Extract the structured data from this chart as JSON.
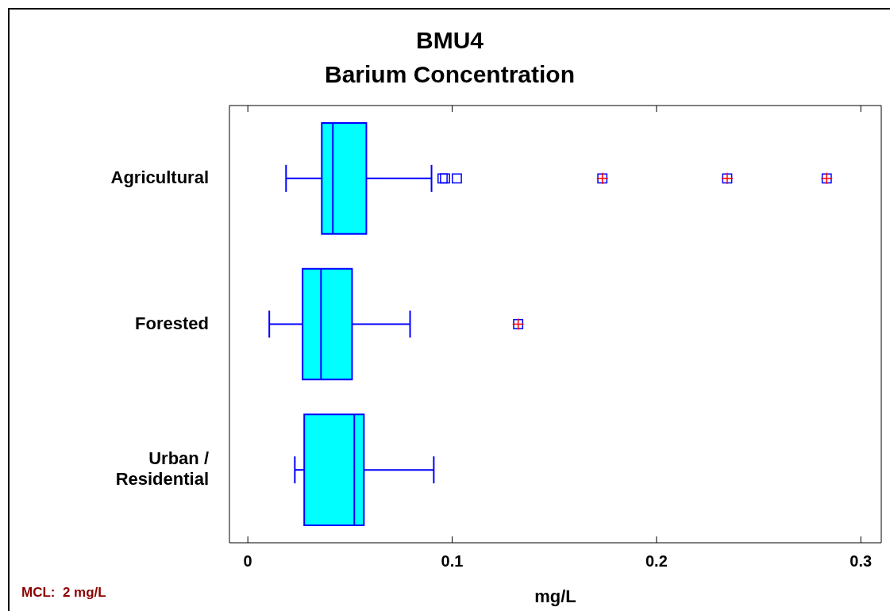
{
  "chart_data": {
    "type": "box",
    "orientation": "horizontal",
    "title": "BMU4",
    "subtitle": "Barium Concentration",
    "xlabel": "mg/L",
    "categories": [
      "Agricultural",
      "Forested",
      "Urban / Residential"
    ],
    "series": [
      {
        "color": "#00ffff",
        "boxes": [
          {
            "low": 0.0187,
            "q1": 0.0362,
            "median": 0.0416,
            "q3": 0.058,
            "high": 0.0899,
            "outliers": [
              0.0953,
              0.0965,
              0.1023,
              0.1735,
              0.2346,
              0.2833
            ]
          },
          {
            "low": 0.0105,
            "q1": 0.0268,
            "median": 0.0358,
            "q3": 0.051,
            "high": 0.0794,
            "outliers": [
              0.1323
            ]
          },
          {
            "low": 0.023,
            "q1": 0.0276,
            "median": 0.0521,
            "q3": 0.0568,
            "high": 0.091
          }
        ]
      }
    ],
    "xlim": [
      -0.009,
      0.31
    ],
    "xticks": [
      0,
      0.1,
      0.2,
      0.3
    ],
    "grid": false,
    "legend": false,
    "annotations": [
      "MCL:  2 mg/L"
    ]
  }
}
